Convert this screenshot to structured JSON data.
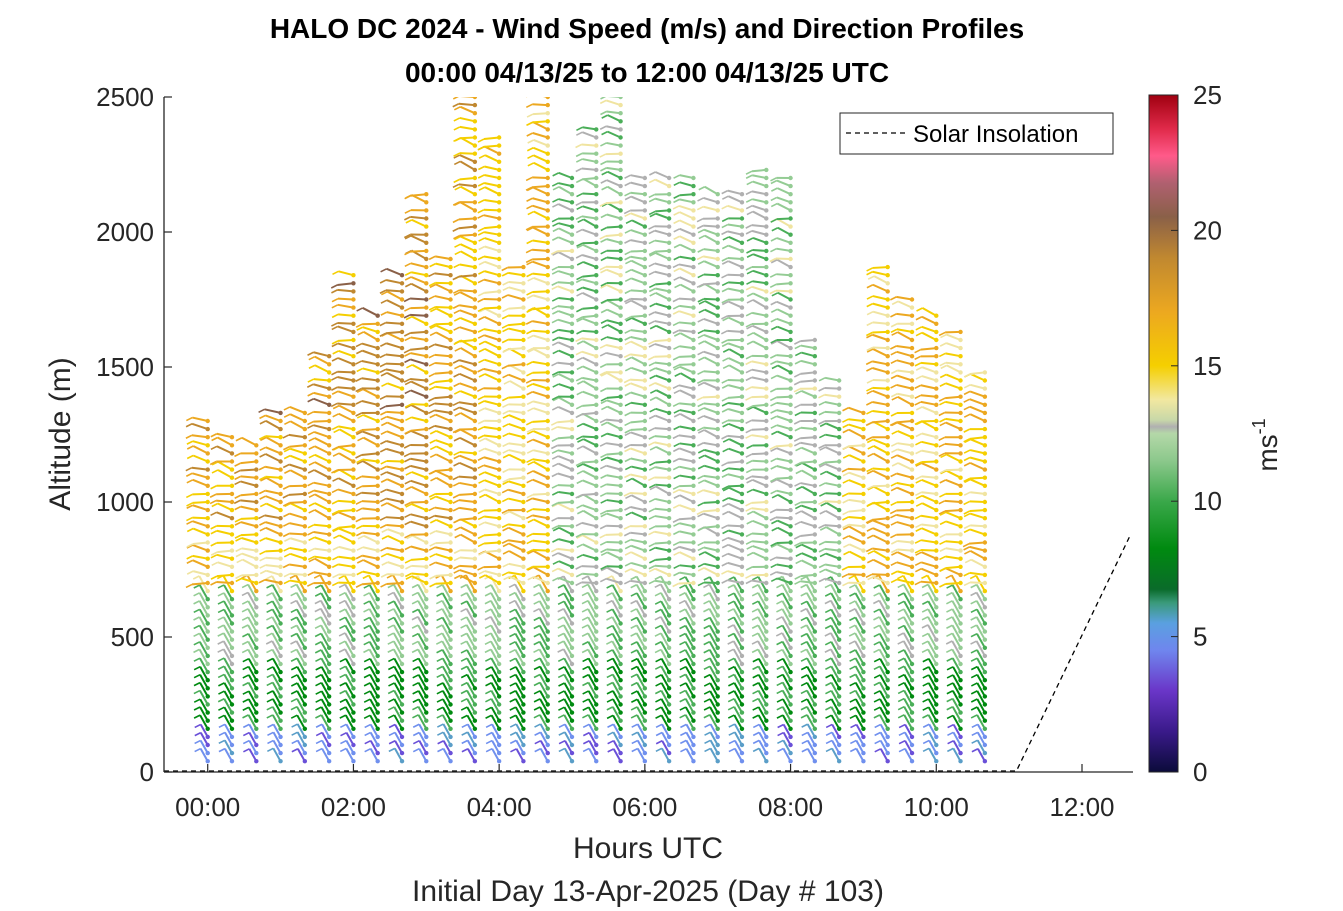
{
  "chart_data": {
    "type": "wind-barb-profile",
    "title": "HALO DC 2024 - Wind Speed (m/s) and Direction Profiles",
    "subtitle": "00:00 04/13/25 to 12:00 04/13/25  UTC",
    "xlabel": "Hours UTC",
    "xlabel2": "Initial Day 13-Apr-2025 (Day # 103)",
    "ylabel": "Altitude (m)",
    "xlim": [
      -0.6,
      12.7
    ],
    "ylim": [
      0,
      2500
    ],
    "x_ticks": [
      0,
      2,
      4,
      6,
      8,
      10,
      12
    ],
    "x_tick_labels": [
      "00:00",
      "02:00",
      "04:00",
      "06:00",
      "08:00",
      "10:00",
      "12:00"
    ],
    "y_ticks": [
      0,
      500,
      1000,
      1500,
      2000,
      2500
    ],
    "y_tick_labels": [
      "0",
      "500",
      "1000",
      "1500",
      "2000",
      "2500"
    ],
    "colorbar": {
      "label": "ms",
      "label_exponent": "-1",
      "range": [
        0,
        25
      ],
      "ticks": [
        0,
        5,
        10,
        15,
        20,
        25
      ],
      "tick_labels": [
        "0",
        "5",
        "10",
        "15",
        "20",
        "25"
      ]
    },
    "legend": {
      "entries": [
        "Solar Insolation"
      ],
      "position": "top-right"
    },
    "profile_times_hours": [
      0,
      0.333,
      0.667,
      1.0,
      1.333,
      1.667,
      2.0,
      2.333,
      2.667,
      3.0,
      3.333,
      3.667,
      4.0,
      4.333,
      4.667,
      5.0,
      5.333,
      5.667,
      6.0,
      6.333,
      6.667,
      7.0,
      7.333,
      7.667,
      8.0,
      8.333,
      8.667,
      9.0,
      9.333,
      9.667,
      10.0,
      10.333,
      10.667
    ],
    "profile_top_altitude_m": [
      1300,
      1250,
      1230,
      1340,
      1340,
      1550,
      1850,
      1700,
      1850,
      2150,
      1900,
      2500,
      2350,
      1870,
      2500,
      2200,
      2400,
      2500,
      2200,
      2200,
      2200,
      2150,
      2150,
      2250,
      2200,
      1600,
      1450,
      1350,
      1880,
      1750,
      1700,
      1650,
      1500
    ],
    "solar_insolation_line": {
      "x_start_hours": 11.1,
      "x_end_hours": 12.65,
      "y_end_altitude_m": 870
    }
  }
}
